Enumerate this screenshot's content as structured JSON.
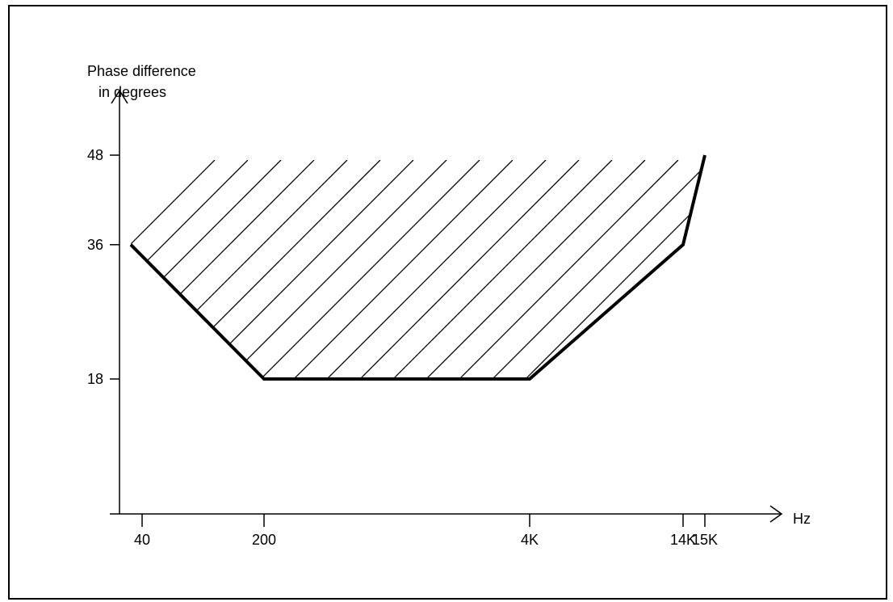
{
  "chart_data": {
    "type": "area",
    "ylabel": [
      "Phase difference",
      "in degrees"
    ],
    "xlabel": "Hz",
    "x_ticks": [
      "40",
      "200",
      "4K",
      "14K",
      "15K"
    ],
    "y_ticks": [
      "18",
      "36",
      "48"
    ],
    "series": [
      {
        "points": [
          {
            "x": "40",
            "y": 36
          },
          {
            "x": "200",
            "y": 18
          },
          {
            "x": "4K",
            "y": 18
          },
          {
            "x": "14K",
            "y": 36
          },
          {
            "x": "15K",
            "y": 48
          }
        ]
      }
    ],
    "hatched_region": "above curve, up to 48 degrees",
    "grid": false,
    "colors": {
      "line": "#000000",
      "background": "#ffffff"
    }
  }
}
